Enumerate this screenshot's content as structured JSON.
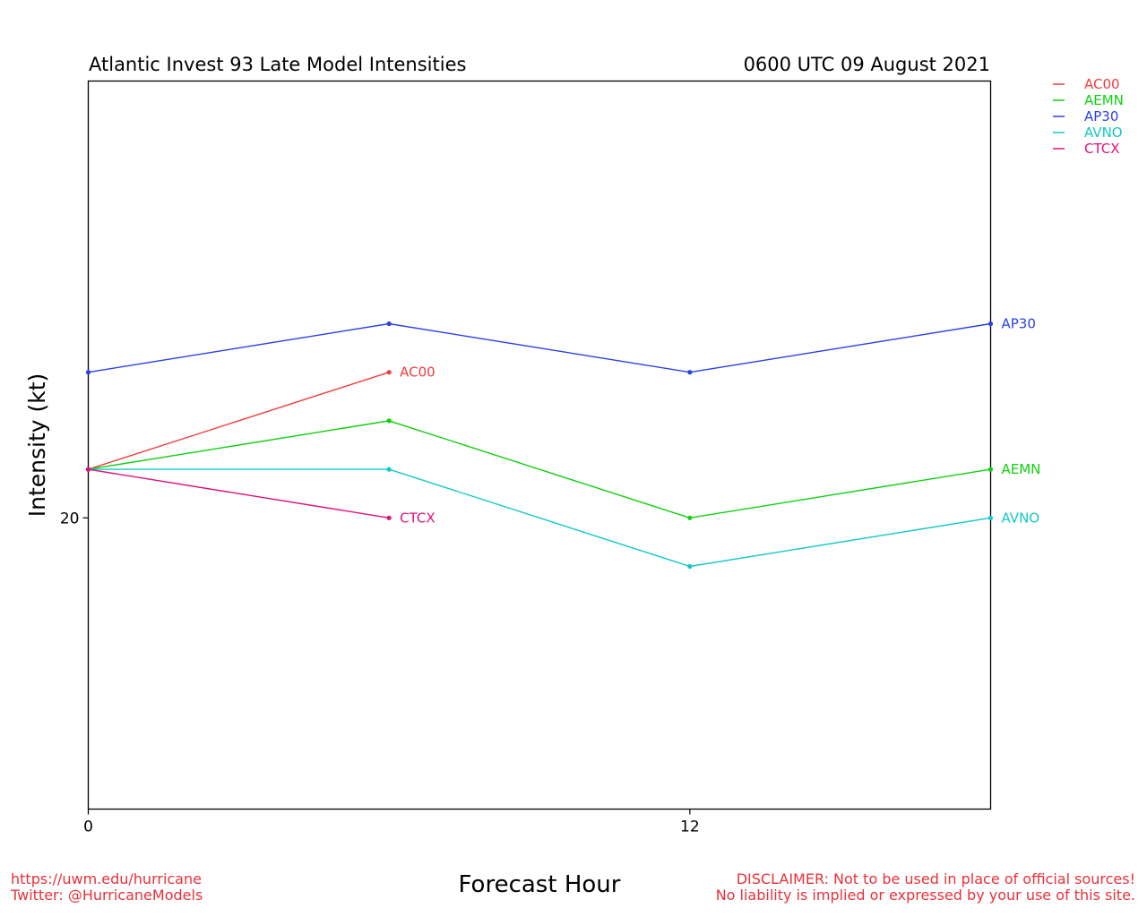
{
  "header": {
    "title": "Atlantic Invest 93 Late Model Intensities",
    "datetime": "0600 UTC 09 August 2021"
  },
  "footer": {
    "left_line1": "https://uwm.edu/hurricane",
    "left_line2": "Twitter: @HurricaneModels",
    "right_line1": "DISCLAIMER: Not to be used in place of official sources!",
    "right_line2": "No liability is implied or expressed by your use of this site.",
    "color": "#e8313a"
  },
  "chart_data": {
    "type": "line",
    "xlabel": "Forecast Hour",
    "ylabel": "Intensity (kt)",
    "xlim": [
      0,
      18
    ],
    "ylim": [
      14,
      29
    ],
    "xticks": [
      0,
      12
    ],
    "yticks": [
      20
    ],
    "grid": false,
    "legend_position": "top-right outside",
    "series": [
      {
        "name": "AC00",
        "color": "#f03c3c",
        "x": [
          0,
          6
        ],
        "y": [
          21,
          23
        ]
      },
      {
        "name": "AEMN",
        "color": "#10d010",
        "x": [
          0,
          6,
          12,
          18
        ],
        "y": [
          21,
          22,
          20,
          21
        ]
      },
      {
        "name": "AP30",
        "color": "#2a3fe8",
        "x": [
          0,
          6,
          12,
          18
        ],
        "y": [
          23,
          24,
          23,
          24
        ]
      },
      {
        "name": "AVNO",
        "color": "#14c8c8",
        "x": [
          0,
          6,
          12,
          18
        ],
        "y": [
          21,
          21,
          19,
          20
        ]
      },
      {
        "name": "CTCX",
        "color": "#e0107a",
        "x": [
          0,
          6
        ],
        "y": [
          21,
          20
        ]
      }
    ]
  }
}
